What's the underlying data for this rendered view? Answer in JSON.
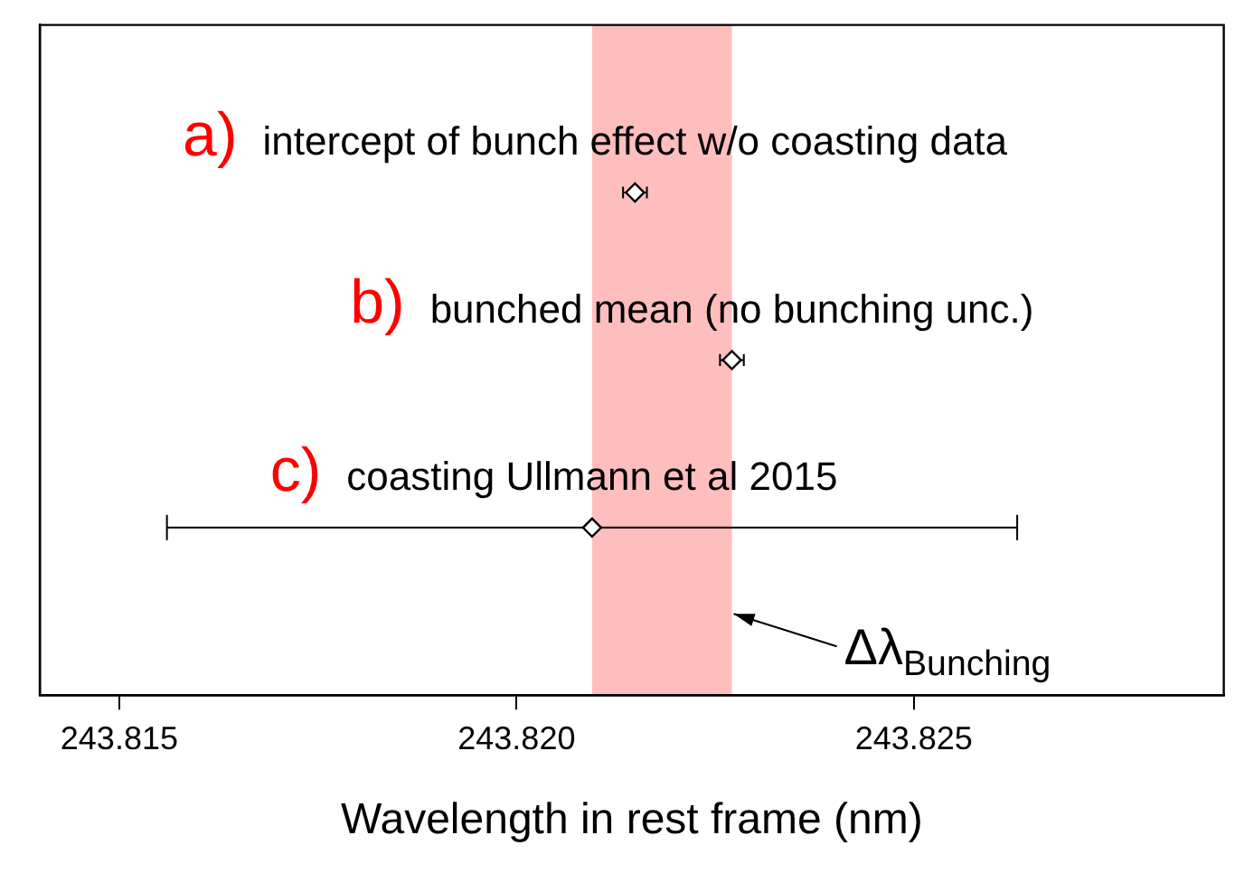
{
  "chart_data": {
    "type": "scatter",
    "orientation": "horizontal",
    "xlabel": "Wavelength in rest frame (nm)",
    "categories": [
      null,
      null,
      null,
      null,
      null
    ],
    "xlim": [
      243.814,
      243.8289
    ],
    "xticks": [
      {
        "value": 243.815,
        "label": "243.815"
      },
      {
        "value": 243.82,
        "label": "243.820"
      },
      {
        "value": 243.825,
        "label": "243.825"
      }
    ],
    "grid": false,
    "legend": false,
    "marker": "diamond",
    "series": [
      {
        "name": "intercept of bunch effect w/o coasting data",
        "color": "#000000",
        "values": [
          null,
          243.82149,
          null,
          null,
          null
        ],
        "errors": [
          null,
          0.00015,
          null,
          null,
          null
        ]
      },
      {
        "name": "bunched mean (no bunching unc.)",
        "color": "#000000",
        "values": [
          null,
          null,
          243.82271,
          null,
          null
        ],
        "errors": [
          null,
          null,
          0.00015,
          null,
          null
        ]
      },
      {
        "name": "coasting Ullmann et al 2015",
        "color": "#000000",
        "values": [
          null,
          null,
          null,
          243.82095,
          null
        ],
        "errors": [
          null,
          null,
          null,
          [
            243.8156,
            243.8263
          ],
          null
        ]
      }
    ],
    "bands": [
      {
        "axis": "x",
        "from": 243.82095,
        "to": 243.82271,
        "label": "Δλ$_{Bunching}$",
        "color": "#ffb3b3"
      }
    ],
    "annotations": [
      "a)",
      "b)",
      "c)"
    ]
  }
}
